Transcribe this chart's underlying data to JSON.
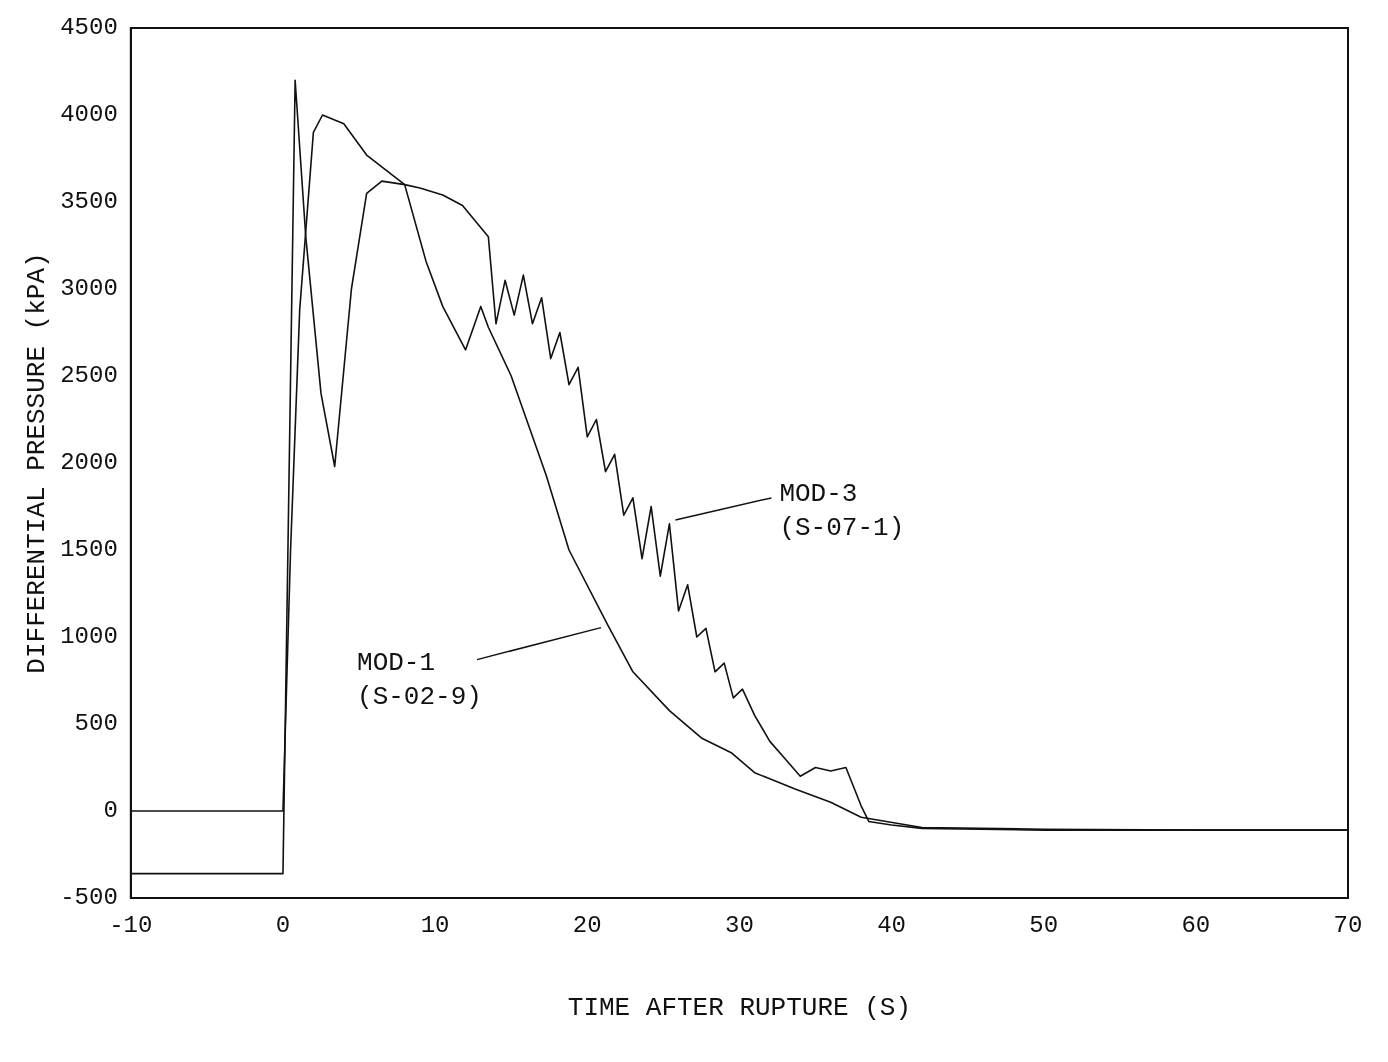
{
  "chart_data": {
    "type": "line",
    "xlabel": "TIME AFTER RUPTURE (S)",
    "ylabel": "DIFFERENTIAL PRESSURE (kPA)",
    "xlim": [
      -10,
      70
    ],
    "ylim": [
      -500,
      4500
    ],
    "xticks": [
      -10,
      0,
      10,
      20,
      30,
      40,
      50,
      60,
      70
    ],
    "yticks": [
      -500,
      0,
      500,
      1000,
      1500,
      2000,
      2500,
      3000,
      3500,
      4000,
      4500
    ],
    "grid": false,
    "legend": false,
    "line_style": "solid",
    "series": [
      {
        "color": "#111111",
        "x": [
          -10,
          0,
          0.8,
          1.5,
          2.5,
          3.4,
          4.5,
          5.5,
          6.5,
          8,
          9,
          10.5,
          11.8,
          13.5,
          14,
          14.6,
          15.2,
          15.8,
          16.4,
          17,
          17.6,
          18.2,
          18.8,
          19.4,
          20,
          20.6,
          21.2,
          21.8,
          22.4,
          23,
          23.6,
          24.2,
          24.8,
          25.4,
          26,
          26.6,
          27.2,
          27.8,
          28.4,
          29,
          29.6,
          30.2,
          31,
          32,
          33,
          34,
          35,
          36,
          37,
          38,
          38.5,
          40,
          42,
          50,
          60,
          70
        ],
        "values": [
          -360,
          -360,
          4200,
          3300,
          2400,
          1980,
          3000,
          3550,
          3620,
          3600,
          3580,
          3540,
          3480,
          3300,
          2800,
          3050,
          2850,
          3080,
          2800,
          2950,
          2600,
          2750,
          2450,
          2550,
          2150,
          2250,
          1950,
          2050,
          1700,
          1800,
          1450,
          1750,
          1350,
          1650,
          1150,
          1300,
          1000,
          1050,
          800,
          850,
          650,
          700,
          550,
          400,
          300,
          200,
          250,
          230,
          250,
          30,
          -60,
          -80,
          -100,
          -110,
          -110,
          -110
        ]
      },
      {
        "color": "#111111",
        "x": [
          -10,
          0,
          0.5,
          1.1,
          2,
          2.6,
          4,
          5.5,
          8,
          9.4,
          10.5,
          12,
          13,
          13.5,
          15,
          17.3,
          18.8,
          21.3,
          23,
          25.4,
          27.5,
          29.5,
          31,
          33.7,
          36,
          38,
          42,
          50,
          60,
          70
        ],
        "values": [
          0,
          0,
          1500,
          2880,
          3900,
          4000,
          3950,
          3770,
          3600,
          3160,
          2900,
          2650,
          2900,
          2780,
          2500,
          1930,
          1500,
          1077,
          800,
          577,
          420,
          333,
          220,
          125,
          50,
          -36,
          -95,
          -105,
          -110,
          -110
        ]
      }
    ],
    "annotations": [
      {
        "text": "MOD-3 (S-07-1)",
        "x": 25.4,
        "y": 1650
      },
      {
        "text": "MOD-1 (S-02-9)",
        "x": 21.3,
        "y": 1077
      }
    ]
  }
}
